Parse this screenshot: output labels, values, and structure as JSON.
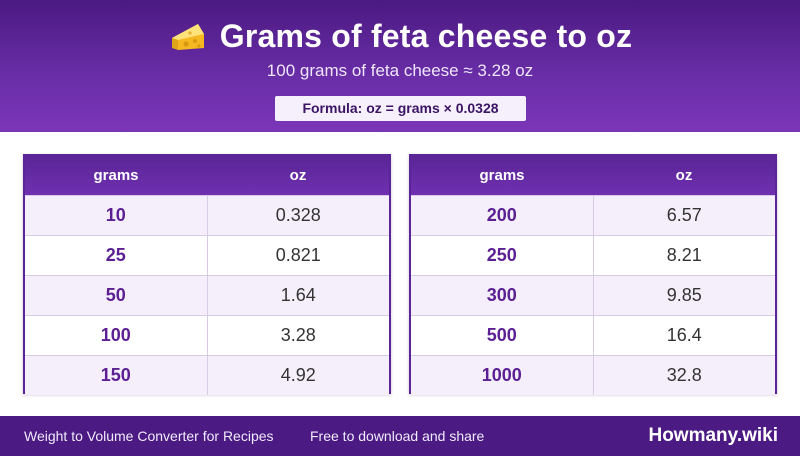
{
  "header": {
    "icon": "cheese-icon",
    "title": "Grams of feta cheese to oz",
    "subtitle": "100 grams of feta cheese ≈ 3.28 oz",
    "formula": "Formula: oz = grams × 0.0328"
  },
  "tables": [
    {
      "headers": [
        "grams",
        "oz"
      ],
      "rows": [
        [
          "10",
          "0.328"
        ],
        [
          "25",
          "0.821"
        ],
        [
          "50",
          "1.64"
        ],
        [
          "100",
          "3.28"
        ],
        [
          "150",
          "4.92"
        ]
      ]
    },
    {
      "headers": [
        "grams",
        "oz"
      ],
      "rows": [
        [
          "200",
          "6.57"
        ],
        [
          "250",
          "8.21"
        ],
        [
          "300",
          "9.85"
        ],
        [
          "500",
          "16.4"
        ],
        [
          "1000",
          "32.8"
        ]
      ]
    }
  ],
  "footer": {
    "link": "Weight to Volume Converter for Recipes",
    "note": "Free to download and share",
    "brand": "Howmany.wiki"
  },
  "colors": {
    "brand_purple": "#4b1a82",
    "accent_purple": "#6a2ea8",
    "value_purple": "#5b1f93"
  }
}
